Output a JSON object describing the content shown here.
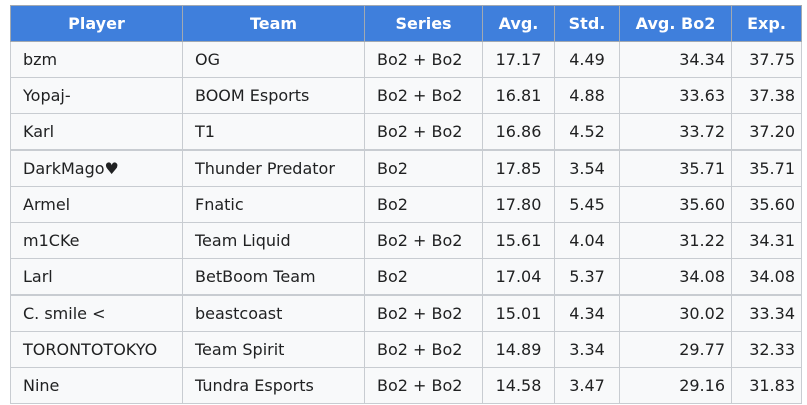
{
  "table": {
    "headers": [
      "Player",
      "Team",
      "Series",
      "Avg.",
      "Std.",
      "Avg. Bo2",
      "Exp."
    ],
    "rows": [
      {
        "player": "bzm",
        "team": "OG",
        "series": "Bo2 + Bo2",
        "avg": "17.17",
        "std": "4.49",
        "avg_bo2": "34.34",
        "exp": "37.75"
      },
      {
        "player": "Yopaj-",
        "team": "BOOM Esports",
        "series": "Bo2 + Bo2",
        "avg": "16.81",
        "std": "4.88",
        "avg_bo2": "33.63",
        "exp": "37.38"
      },
      {
        "player": "Karl",
        "team": "T1",
        "series": "Bo2 + Bo2",
        "avg": "16.86",
        "std": "4.52",
        "avg_bo2": "33.72",
        "exp": "37.20"
      },
      {
        "player": "DarkMago♥",
        "team": "Thunder Predator",
        "series": "Bo2",
        "avg": "17.85",
        "std": "3.54",
        "avg_bo2": "35.71",
        "exp": "35.71"
      },
      {
        "player": "Armel",
        "team": "Fnatic",
        "series": "Bo2",
        "avg": "17.80",
        "std": "5.45",
        "avg_bo2": "35.60",
        "exp": "35.60"
      },
      {
        "player": "m1CKe",
        "team": "Team Liquid",
        "series": "Bo2 + Bo2",
        "avg": "15.61",
        "std": "4.04",
        "avg_bo2": "31.22",
        "exp": "34.31"
      },
      {
        "player": "Larl",
        "team": "BetBoom Team",
        "series": "Bo2",
        "avg": "17.04",
        "std": "5.37",
        "avg_bo2": "34.08",
        "exp": "34.08"
      },
      {
        "player": "C. smile <",
        "team": "beastcoast",
        "series": "Bo2 + Bo2",
        "avg": "15.01",
        "std": "4.34",
        "avg_bo2": "30.02",
        "exp": "33.34"
      },
      {
        "player": "TORONTOTOKYO",
        "team": "Team Spirit",
        "series": "Bo2 + Bo2",
        "avg": "14.89",
        "std": "3.34",
        "avg_bo2": "29.77",
        "exp": "32.33"
      },
      {
        "player": "Nine",
        "team": "Tundra Esports",
        "series": "Bo2 + Bo2",
        "avg": "14.58",
        "std": "3.47",
        "avg_bo2": "29.16",
        "exp": "31.83"
      }
    ]
  }
}
